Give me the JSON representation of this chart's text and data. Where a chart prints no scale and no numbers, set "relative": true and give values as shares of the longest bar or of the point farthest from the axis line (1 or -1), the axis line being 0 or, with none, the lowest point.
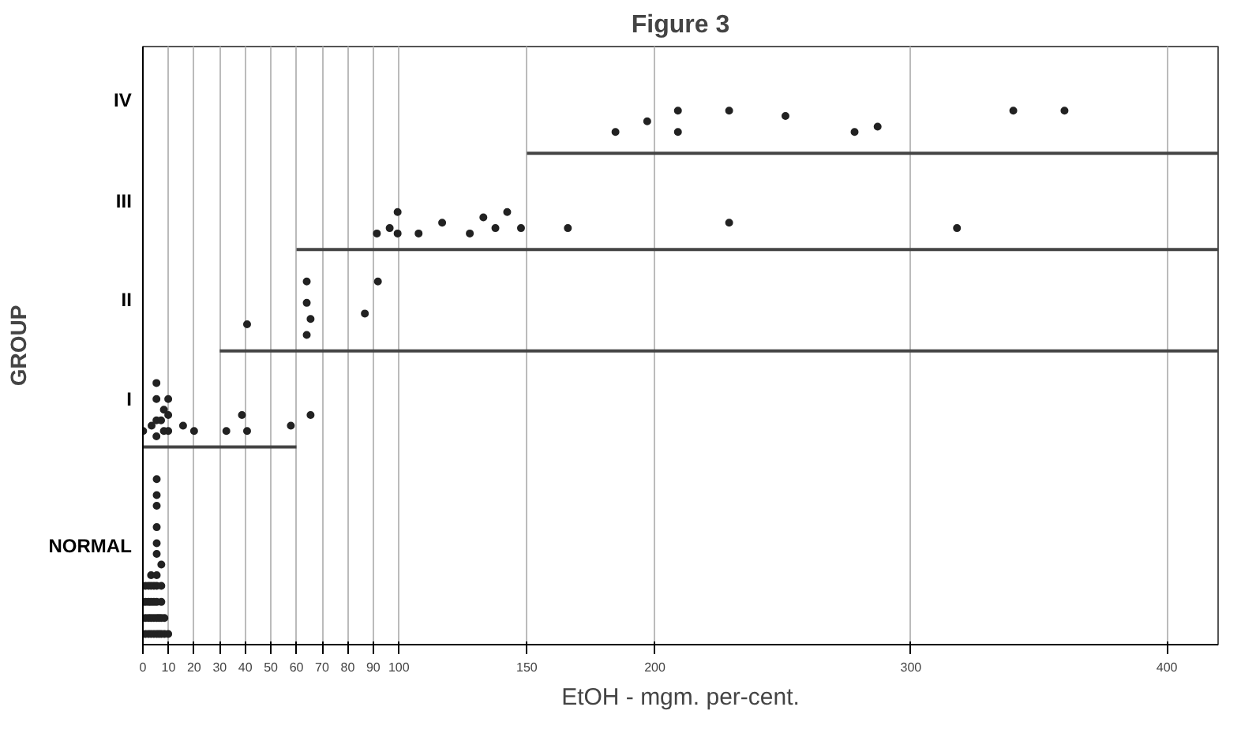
{
  "chart_data": {
    "type": "scatter",
    "title": "Figure 3",
    "xlabel": "EtOH - mgm. per-cent.",
    "ylabel": "GROUP",
    "xlim": [
      0,
      420
    ],
    "xticks": [
      0,
      10,
      20,
      30,
      40,
      50,
      60,
      70,
      80,
      90,
      100,
      150,
      200,
      300,
      400
    ],
    "relative": true,
    "annotations": [
      "NORMAL",
      "I",
      "II",
      "III",
      "IV"
    ],
    "grid": true,
    "marker": "circle",
    "series": [
      {
        "color": "#222222",
        "x": [
          1.0,
          2.2,
          3.2,
          4.3,
          5.4,
          6.3,
          7.2,
          8.4,
          9.9,
          1.0,
          2.2,
          3.2,
          4.3,
          5.4,
          6.3,
          7.2,
          8.4,
          1.0,
          2.2,
          3.2,
          4.3,
          5.4,
          7.2,
          1.0,
          2.2,
          3.2,
          4.3,
          5.4,
          7.2,
          3.2,
          5.4,
          7.2,
          5.4,
          5.4,
          5.4,
          5.4,
          5.4,
          5.4,
          0.1,
          3.4,
          5.3,
          5.3,
          5.3,
          5.3,
          7.1,
          8.2,
          8.2,
          9.9,
          9.9,
          9.9,
          15.7,
          20,
          32.6,
          38.7,
          40.7,
          40.7,
          57.8,
          65.5,
          64,
          64,
          65.5,
          64,
          86.7,
          91.8,
          91.4,
          96.4,
          99.5,
          99.5,
          107.7,
          116.9,
          127.7,
          133,
          137.7,
          142.3,
          147.7,
          166,
          229,
          318,
          184.6,
          197,
          209,
          209,
          229,
          251,
          278,
          287,
          340,
          360
        ],
        "values": [
          0.02,
          0.02,
          0.02,
          0.02,
          0.02,
          0.02,
          0.02,
          0.02,
          0.02,
          0.05,
          0.05,
          0.05,
          0.05,
          0.05,
          0.05,
          0.05,
          0.05,
          0.08,
          0.08,
          0.08,
          0.08,
          0.08,
          0.08,
          0.11,
          0.11,
          0.11,
          0.11,
          0.11,
          0.11,
          0.13,
          0.13,
          0.15,
          0.17,
          0.19,
          0.22,
          0.26,
          0.28,
          0.31,
          0.4,
          0.41,
          0.39,
          0.42,
          0.46,
          0.49,
          0.42,
          0.44,
          0.4,
          0.46,
          0.43,
          0.4,
          0.41,
          0.4,
          0.4,
          0.43,
          0.4,
          0.6,
          0.41,
          0.43,
          0.68,
          0.64,
          0.61,
          0.58,
          0.62,
          0.68,
          0.77,
          0.78,
          0.81,
          0.77,
          0.77,
          0.79,
          0.77,
          0.8,
          0.78,
          0.81,
          0.78,
          0.78,
          0.79,
          0.78,
          0.96,
          0.98,
          1,
          0.96,
          1,
          0.99,
          0.96,
          0.97,
          1,
          1
        ]
      },
      {
        "type": "line",
        "color": "#444444",
        "x": [
          0,
          60
        ],
        "values": [
          0.37,
          0.37
        ],
        "marker": "none"
      },
      {
        "type": "line",
        "color": "#444444",
        "x": [
          30,
          420
        ],
        "values": [
          0.55,
          0.55
        ],
        "marker": "none"
      },
      {
        "type": "line",
        "color": "#444444",
        "x": [
          60,
          420
        ],
        "values": [
          0.74,
          0.74
        ],
        "marker": "none"
      },
      {
        "type": "line",
        "color": "#444444",
        "x": [
          150,
          420
        ],
        "values": [
          0.92,
          0.92
        ],
        "marker": "none"
      }
    ]
  }
}
